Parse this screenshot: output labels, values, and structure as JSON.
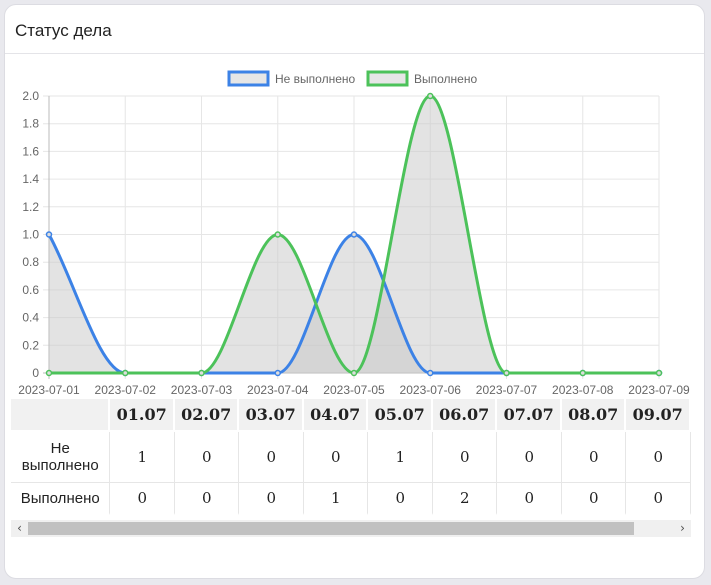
{
  "card": {
    "title": "Статус дела"
  },
  "colors": {
    "not_done": "#3c82e6",
    "done": "#4cc25a",
    "fill": "#e0e0e0",
    "grid": "#e6e6e6"
  },
  "chart_data": {
    "type": "line",
    "title": "",
    "xlabel": "",
    "ylabel": "",
    "x": [
      "2023-07-01",
      "2023-07-02",
      "2023-07-03",
      "2023-07-04",
      "2023-07-05",
      "2023-07-06",
      "2023-07-07",
      "2023-07-08",
      "2023-07-09"
    ],
    "ylim": [
      0,
      2
    ],
    "yticks": [
      "0",
      "0.2",
      "0.4",
      "0.6",
      "0.8",
      "1.0",
      "1.2",
      "1.4",
      "1.6",
      "1.8",
      "2.0"
    ],
    "grid": true,
    "legend": "top",
    "series": [
      {
        "name": "Не выполнено",
        "color": "#3c82e6",
        "values": [
          1,
          0,
          0,
          0,
          1,
          0,
          0,
          0,
          0
        ]
      },
      {
        "name": "Выполнено",
        "color": "#4cc25a",
        "values": [
          0,
          0,
          0,
          1,
          0,
          2,
          0,
          0,
          0
        ]
      }
    ]
  },
  "table": {
    "corner": "",
    "columns": [
      "01.07",
      "02.07",
      "03.07",
      "04.07",
      "05.07",
      "06.07",
      "07.07",
      "08.07",
      "09.07"
    ],
    "rows": [
      {
        "label": "Не выполнено",
        "values": [
          "1",
          "0",
          "0",
          "0",
          "1",
          "0",
          "0",
          "0",
          "0"
        ]
      },
      {
        "label": "Выполнено",
        "values": [
          "0",
          "0",
          "0",
          "1",
          "0",
          "2",
          "0",
          "0",
          "0"
        ]
      }
    ]
  },
  "scrollbar": {
    "left_arrow": "‹",
    "right_arrow": "›"
  }
}
